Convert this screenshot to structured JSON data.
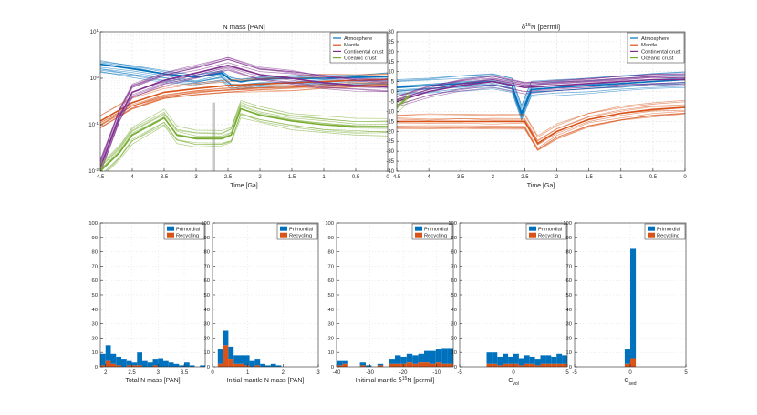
{
  "colors": {
    "atmosphere": "#0072bd",
    "mantle": "#d95319",
    "continental": "#7e2f8e",
    "oceanic": "#77ac30",
    "primordial": "#0072bd",
    "recycling": "#d95319",
    "grid": "#dcdcdc",
    "axis": "#262626",
    "band": "#b0b0b0"
  },
  "chart_data": [
    {
      "type": "line",
      "title": "N mass [PAN]",
      "xlabel": "Time [Ga]",
      "ylabel": "",
      "xlim": [
        4.5,
        0
      ],
      "xreversed": true,
      "yscale": "log",
      "ylim": [
        0.01,
        10
      ],
      "xticks": [
        "4.5",
        "4",
        "3.5",
        "3",
        "2.5",
        "2",
        "1.5",
        "1",
        "0.5",
        "0"
      ],
      "yticks": [
        "10^{-2}",
        "10^{-1}",
        "10^{0}",
        "10^{1}"
      ],
      "ytick_labels": [
        {
          "base": "10",
          "exp": "-2"
        },
        {
          "base": "10",
          "exp": "-1"
        },
        {
          "base": "10",
          "exp": "0"
        },
        {
          "base": "10",
          "exp": "1"
        }
      ],
      "legend": [
        "Atmosphere",
        "Mantle",
        "Continental crust",
        "Oceanic crust"
      ],
      "legend_loc": "top-right",
      "series": [
        {
          "name": "Atmosphere",
          "x": [
            4.5,
            4,
            3.5,
            3,
            2.6,
            2.45,
            2.3,
            2,
            1.5,
            1,
            0.5,
            0
          ],
          "y": [
            2.0,
            1.6,
            1.25,
            1.05,
            1.3,
            0.9,
            0.85,
            0.95,
            1.0,
            1.0,
            1.05,
            1.1
          ]
        },
        {
          "name": "Mantle",
          "x": [
            4.5,
            4,
            3.5,
            3,
            2.5,
            2,
            1.5,
            1,
            0.5,
            0
          ],
          "y": [
            0.12,
            0.3,
            0.5,
            0.6,
            0.7,
            0.75,
            0.8,
            0.85,
            0.9,
            0.95
          ]
        },
        {
          "name": "Continental crust",
          "x": [
            4.5,
            4.2,
            4,
            3.5,
            3,
            2.5,
            2,
            1.5,
            1,
            0.5,
            0
          ],
          "y": [
            0.012,
            0.15,
            0.5,
            0.9,
            1.3,
            1.9,
            1.2,
            1.0,
            0.8,
            0.7,
            0.65
          ]
        },
        {
          "name": "Oceanic crust",
          "x": [
            4.5,
            4.2,
            4,
            3.5,
            3.3,
            3,
            2.6,
            2.45,
            2.3,
            2,
            1.5,
            1,
            0.5,
            0
          ],
          "y": [
            0.01,
            0.025,
            0.06,
            0.14,
            0.06,
            0.05,
            0.05,
            0.06,
            0.22,
            0.16,
            0.12,
            0.1,
            0.09,
            0.09
          ]
        }
      ],
      "band_x": [
        2.75,
        2.7
      ]
    },
    {
      "type": "line",
      "title": "δ15N [permil]",
      "title_parts": {
        "prefix": "δ",
        "sup": "15",
        "suffix": "N [permil]"
      },
      "xlabel": "Time [Ga]",
      "ylabel": "",
      "xlim": [
        4.5,
        0
      ],
      "xreversed": true,
      "ylim": [
        -40,
        30
      ],
      "xticks": [
        "4.5",
        "4",
        "3.5",
        "3",
        "2.5",
        "2",
        "1.5",
        "1",
        "0.5",
        "0"
      ],
      "yticks": [
        "-40",
        "-35",
        "-30",
        "-25",
        "-20",
        "-15",
        "-10",
        "-5",
        "0",
        "5",
        "10",
        "15",
        "20",
        "25",
        "30"
      ],
      "legend": [
        "Atmosphere",
        "Mantle",
        "Continental crust",
        "Oceanic crust"
      ],
      "legend_loc": "top-right",
      "series": [
        {
          "name": "Atmosphere",
          "x": [
            4.5,
            4,
            3.5,
            3,
            2.7,
            2.55,
            2.4,
            2,
            1.5,
            1,
            0.5,
            0
          ],
          "y": [
            2,
            3,
            4,
            5,
            3,
            -11,
            1,
            2,
            3,
            4,
            5,
            6
          ]
        },
        {
          "name": "Mantle",
          "x": [
            4.5,
            4,
            3.5,
            3,
            2.5,
            2.3,
            2,
            1.5,
            1,
            0.5,
            0
          ],
          "y": [
            -15,
            -15,
            -15,
            -15,
            -15,
            -26,
            -20,
            -14,
            -11,
            -9,
            -8
          ]
        },
        {
          "name": "Continental crust",
          "x": [
            4.5,
            4,
            3.5,
            3,
            2.5,
            2,
            1.5,
            1,
            0.5,
            0
          ],
          "y": [
            -5,
            0,
            3,
            5,
            2,
            3,
            4,
            5,
            6,
            6
          ]
        },
        {
          "name": "Oceanic crust",
          "x": [
            4.5,
            4.4,
            4.3
          ],
          "y": [
            -8,
            -5,
            -2
          ]
        }
      ]
    },
    {
      "type": "bar",
      "stacked": true,
      "title": "",
      "xlabel": "Total N mass [PAN]",
      "ylabel": "",
      "xlim": [
        1.9,
        3.9
      ],
      "ylim": [
        0,
        100
      ],
      "xticks": [
        "2",
        "2.5",
        "3",
        "3.5"
      ],
      "yticks": [
        "0",
        "10",
        "20",
        "30",
        "40",
        "50",
        "60",
        "70",
        "80",
        "90",
        "100"
      ],
      "legend": [
        "Primordial",
        "Recycling"
      ],
      "legend_loc": "top-right",
      "bin_edges": [
        1.9,
        2.0,
        2.1,
        2.2,
        2.3,
        2.4,
        2.5,
        2.6,
        2.7,
        2.8,
        2.9,
        3.0,
        3.1,
        3.2,
        3.3,
        3.4,
        3.5,
        3.6,
        3.7,
        3.8,
        3.9
      ],
      "series": [
        {
          "name": "Recycling",
          "values": [
            1,
            4,
            2,
            1,
            0,
            1,
            1,
            1,
            0,
            0,
            1,
            0,
            0,
            0,
            0,
            0,
            0,
            0,
            0,
            0
          ]
        },
        {
          "name": "Primordial",
          "values": [
            8,
            11,
            7,
            6,
            5,
            3,
            2,
            9,
            4,
            3,
            4,
            6,
            4,
            3,
            2,
            1,
            3,
            1,
            0,
            1
          ]
        }
      ]
    },
    {
      "type": "bar",
      "stacked": true,
      "title": "",
      "xlabel": "Initial mantle N mass [PAN]",
      "ylabel": "",
      "xlim": [
        0,
        3
      ],
      "ylim": [
        0,
        100
      ],
      "xticks": [
        "0",
        "1",
        "2",
        "3"
      ],
      "yticks": [
        "0",
        "10",
        "20",
        "30",
        "40",
        "50",
        "60",
        "70",
        "80",
        "90",
        "100"
      ],
      "legend": [
        "Primordial",
        "Recycling"
      ],
      "legend_loc": "top-right",
      "bin_edges": [
        0,
        0.15,
        0.3,
        0.45,
        0.6,
        0.75,
        0.9,
        1.05,
        1.2,
        1.35,
        1.5,
        1.65,
        1.8,
        1.95,
        2.1,
        2.25,
        2.4,
        2.55,
        2.7,
        2.85,
        3.0
      ],
      "series": [
        {
          "name": "Recycling",
          "values": [
            0,
            2,
            15,
            5,
            2,
            2,
            1,
            0,
            1,
            0,
            0,
            0,
            0,
            0,
            0,
            0,
            0,
            0,
            0,
            0
          ]
        },
        {
          "name": "Primordial",
          "values": [
            0,
            10,
            10,
            9,
            6,
            6,
            7,
            4,
            4,
            2,
            1,
            2,
            1,
            0,
            0,
            0,
            0,
            0,
            0,
            0
          ]
        }
      ]
    },
    {
      "type": "bar",
      "stacked": true,
      "title": "",
      "xlabel": "Initimal mantle δ15N [permil]",
      "xlabel_parts": {
        "prefix": "Initimal mantle δ",
        "sup": "15",
        "suffix": "N [permil]"
      },
      "ylabel": "",
      "xlim": [
        -40,
        -5
      ],
      "ylim": [
        0,
        100
      ],
      "xticks": [
        "-40",
        "-30",
        "-20",
        "-10"
      ],
      "yticks": [
        "0",
        "10",
        "20",
        "30",
        "40",
        "50",
        "60",
        "70",
        "80",
        "90",
        "100"
      ],
      "legend": [
        "Primordial",
        "Recycling"
      ],
      "legend_loc": "top-right",
      "bin_edges": [
        -40,
        -38.25,
        -36.5,
        -34.75,
        -33,
        -31.25,
        -29.5,
        -27.75,
        -26,
        -24.25,
        -22.5,
        -20.75,
        -19,
        -17.25,
        -15.5,
        -13.75,
        -12,
        -10.25,
        -8.5,
        -6.75,
        -5
      ],
      "series": [
        {
          "name": "Recycling",
          "values": [
            1,
            2,
            0,
            0,
            1,
            0,
            0,
            1,
            0,
            2,
            2,
            2,
            3,
            2,
            3,
            3,
            2,
            3,
            2,
            2
          ]
        },
        {
          "name": "Primordial",
          "values": [
            3,
            2,
            0,
            0,
            2,
            1,
            0,
            1,
            0,
            3,
            6,
            5,
            6,
            6,
            6,
            8,
            9,
            9,
            11,
            11
          ]
        }
      ]
    },
    {
      "type": "bar",
      "stacked": true,
      "title": "",
      "xlabel": "Cvol",
      "xlabel_parts": {
        "main": "C",
        "sub": "vol"
      },
      "ylabel": "",
      "xlim": [
        -5,
        5
      ],
      "ylim": [
        0,
        100
      ],
      "xticks": [
        "-5",
        "0",
        "5"
      ],
      "yticks": [
        "0",
        "10",
        "20",
        "30",
        "40",
        "50",
        "60",
        "70",
        "80",
        "90",
        "100"
      ],
      "legend": [
        "Primordial",
        "Recycling"
      ],
      "legend_loc": "top-right",
      "bin_edges": [
        -5,
        -4.5,
        -4,
        -3.5,
        -3,
        -2.5,
        -2,
        -1.5,
        -1,
        -0.5,
        0,
        0.5,
        1,
        1.5,
        2,
        2.5,
        3,
        3.5,
        4,
        4.5,
        5
      ],
      "series": [
        {
          "name": "Recycling",
          "values": [
            0,
            0,
            0,
            0,
            0,
            2,
            2,
            1,
            2,
            2,
            2,
            1,
            2,
            2,
            1,
            2,
            2,
            2,
            2,
            2
          ]
        },
        {
          "name": "Primordial",
          "values": [
            0,
            0,
            0,
            0,
            0,
            8,
            8,
            6,
            7,
            5,
            7,
            5,
            6,
            5,
            4,
            6,
            6,
            5,
            7,
            6
          ]
        }
      ]
    },
    {
      "type": "bar",
      "stacked": true,
      "title": "",
      "xlabel": "Csed",
      "xlabel_parts": {
        "main": "C",
        "sub": "sed"
      },
      "ylabel": "",
      "xlim": [
        -5,
        5
      ],
      "ylim": [
        0,
        100
      ],
      "xticks": [
        "-5",
        "0",
        "5"
      ],
      "yticks": [
        "0",
        "10",
        "20",
        "30",
        "40",
        "50",
        "60",
        "70",
        "80",
        "90",
        "100"
      ],
      "legend": [
        "Primordial",
        "Recycling"
      ],
      "legend_loc": "top-right",
      "bin_edges": [
        -5,
        -4.5,
        -4,
        -3.5,
        -3,
        -2.5,
        -2,
        -1.5,
        -1,
        -0.5,
        0,
        0.5,
        1,
        1.5,
        2,
        2.5,
        3,
        3.5,
        4,
        4.5,
        5
      ],
      "series": [
        {
          "name": "Recycling",
          "values": [
            0,
            0,
            0,
            0,
            0,
            0,
            0,
            0,
            0,
            2,
            6,
            0,
            0,
            0,
            0,
            0,
            0,
            0,
            0,
            0
          ]
        },
        {
          "name": "Primordial",
          "values": [
            0,
            0,
            0,
            0,
            0,
            0,
            0,
            0,
            0,
            10,
            76,
            0,
            0,
            0,
            0,
            0,
            0,
            0,
            0,
            0
          ]
        }
      ]
    }
  ]
}
